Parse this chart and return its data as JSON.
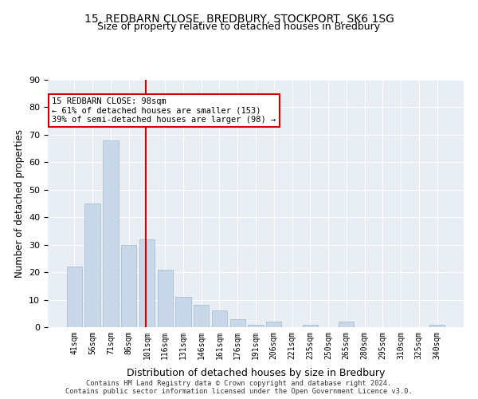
{
  "title1": "15, REDBARN CLOSE, BREDBURY, STOCKPORT, SK6 1SG",
  "title2": "Size of property relative to detached houses in Bredbury",
  "xlabel": "Distribution of detached houses by size in Bredbury",
  "ylabel": "Number of detached properties",
  "categories": [
    "41sqm",
    "56sqm",
    "71sqm",
    "86sqm",
    "101sqm",
    "116sqm",
    "131sqm",
    "146sqm",
    "161sqm",
    "176sqm",
    "191sqm",
    "206sqm",
    "221sqm",
    "235sqm",
    "250sqm",
    "265sqm",
    "280sqm",
    "295sqm",
    "310sqm",
    "325sqm",
    "340sqm"
  ],
  "values": [
    22,
    45,
    68,
    30,
    32,
    21,
    11,
    8,
    6,
    3,
    1,
    2,
    0,
    1,
    0,
    2,
    0,
    0,
    0,
    0,
    1
  ],
  "bar_color": "#c8d8e8",
  "bar_edgecolor": "#a0b8cc",
  "vline_color": "#cc0000",
  "vline_x": 3.925,
  "annotation_text": "15 REDBARN CLOSE: 98sqm\n← 61% of detached houses are smaller (153)\n39% of semi-detached houses are larger (98) →",
  "annotation_box_color": "#cc0000",
  "background_color": "#e8eef4",
  "grid_color": "#ffffff",
  "footer_text": "Contains HM Land Registry data © Crown copyright and database right 2024.\nContains public sector information licensed under the Open Government Licence v3.0.",
  "ylim": [
    0,
    90
  ],
  "yticks": [
    0,
    10,
    20,
    30,
    40,
    50,
    60,
    70,
    80,
    90
  ]
}
